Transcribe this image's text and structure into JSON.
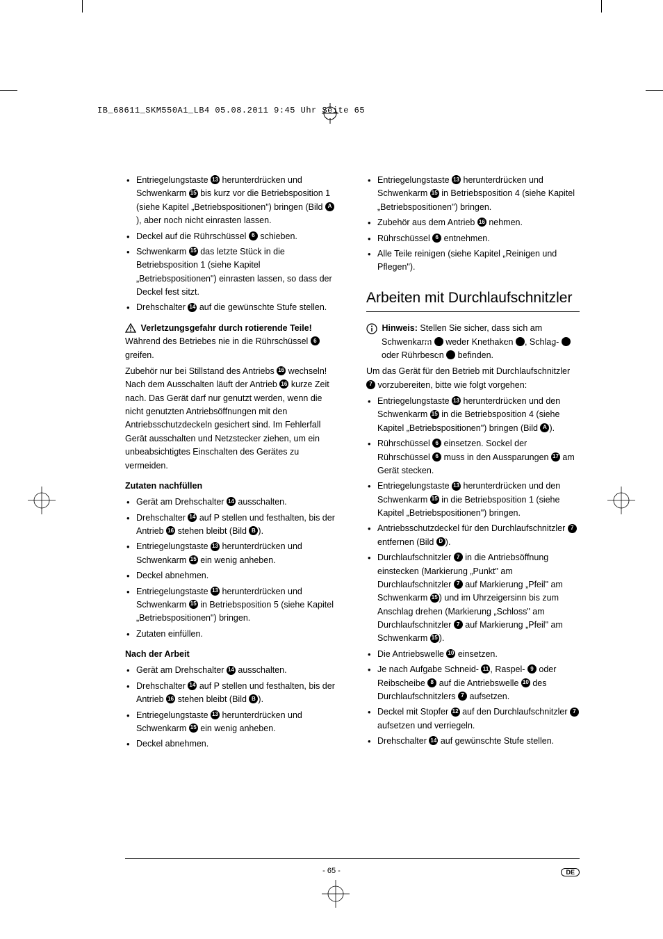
{
  "header_info": "IB_68611_SKM550A1_LB4  05.08.2011  9:45 Uhr  Seite 65",
  "page_number": "- 65 -",
  "lang": "DE",
  "col_left": {
    "list1": [
      "Entriegelungstaste ⓭ herunterdrücken und Schwenkarm ⓯ bis kurz vor die Betriebsposition 1 (siehe Kapitel „Betriebspositionen\") bringen (Bild Ⓐ), aber noch nicht einrasten lassen.",
      "Deckel auf die Rührschüssel ❻ schieben.",
      "Schwenkarm ⓯ das letzte Stück in die Betriebsposition 1 (siehe Kapitel „Betriebspositionen\") einrasten lassen, so dass der Deckel fest sitzt.",
      "Drehschalter ⓮ auf die gewünschte Stufe stellen."
    ],
    "warn_heading": " Verletzungsgefahr durch rotierende Teile!",
    "warn_text": "Während des Betriebes nie in die Rührschüssel ❻ greifen.",
    "body_para": "Zubehör nur bei Stillstand des Antriebs ⓰ wechseln! Nach dem Ausschalten läuft der Antrieb ⓰ kurze Zeit nach. Das Gerät darf nur genutzt werden, wenn die nicht genutzten Antriebsöffnungen mit den Antriebsschutzdeckeln gesichert sind. Im Fehlerfall Gerät ausschalten und Netzstecker ziehen, um ein unbeabsichtigtes Einschalten des Gerätes zu vermeiden.",
    "sub1": "Zutaten nachfüllen",
    "list2": [
      "Gerät am Drehschalter ⓮ ausschalten.",
      "Drehschalter ⓮ auf P stellen und festhalten, bis der Antrieb ⓰ stehen bleibt (Bild Ⓑ).",
      "Entriegelungstaste ⓭ herunterdrücken und Schwenkarm ⓯ ein wenig anheben.",
      "Deckel abnehmen.",
      "Entriegelungstaste ⓭ herunterdrücken und Schwenkarm ⓯ in Betriebsposition 5 (siehe Kapitel „Betriebspositionen\") bringen.",
      "Zutaten einfüllen."
    ],
    "sub2": "Nach der Arbeit",
    "list3": [
      "Gerät am Drehschalter ⓮ ausschalten.",
      "Drehschalter ⓮ auf P stellen und festhalten, bis der Antrieb ⓰ stehen bleibt (Bild Ⓑ).",
      "Entriegelungstaste ⓭ herunterdrücken und Schwenkarm ⓯ ein wenig anheben.",
      "Deckel abnehmen."
    ]
  },
  "col_right": {
    "list1": [
      "Entriegelungstaste ⓭ herunterdrücken und Schwenkarm ⓯ in Betriebsposition 4 (siehe Kapitel „Betriebspositionen\") bringen.",
      "Zubehör aus dem Antrieb ⓰ nehmen.",
      "Rührschüssel ❻ entnehmen.",
      "Alle Teile reinigen (siehe Kapitel „Reinigen und Pflegen\")."
    ],
    "section_heading": "Arbeiten mit Durchlaufschnitzler",
    "note_label": "Hinweis:",
    "note_text": " Stellen Sie sicher, dass sich am Schwenkarm ⓯ weder Knethaken ❶, Schlag- ❸ oder Rührbesen ❷ befinden.",
    "body_para": "Um das Gerät für den Betrieb mit Durchlaufschnitzler ❼ vorzubereiten, bitte wie folgt vorgehen:",
    "list2": [
      "Entriegelungstaste ⓭ herunterdrücken und den Schwenkarm ⓯ in die Betriebsposition 4 (siehe Kapitel „Betriebspositionen\") bringen (Bild Ⓐ).",
      "Rührschüssel ❻ einsetzen. Sockel der Rührschüssel ❻ muss in den Aussparungen ⓱ am Gerät stecken.",
      "Entriegelungstaste ⓭ herunterdrücken und den Schwenkarm ⓯ in die Betriebsposition 1 (siehe Kapitel „Betriebspositionen\") bringen.",
      "Antriebsschutzdeckel für den Durchlaufschnitzler ❼ entfernen (Bild Ⓓ).",
      "Durchlaufschnitzler ❼ in die Antriebsöffnung einstecken (Markierung „Punkt\" am Durchlaufschnitzler ❼ auf Markierung „Pfeil\" am Schwenkarm ⓯) und im Uhrzeigersinn bis zum Anschlag drehen (Markierung „Schloss\" am Durchlaufschnitzler ❼ auf Markierung „Pfeil\" am Schwenkarm ⓯).",
      "Die Antriebswelle ❿ einsetzen.",
      "Je nach Aufgabe Schneid- ⓫, Raspel- ❾ oder Reibscheibe ❽ auf die Antriebswelle ❿ des Durchlaufschnitzlers ❼ aufsetzen.",
      "Deckel mit Stopfer ⓬ auf den Durchlaufschnitzler ❼ aufsetzen und verriegeln.",
      "Drehschalter ⓮ auf gewünschte Stufe stellen."
    ]
  }
}
